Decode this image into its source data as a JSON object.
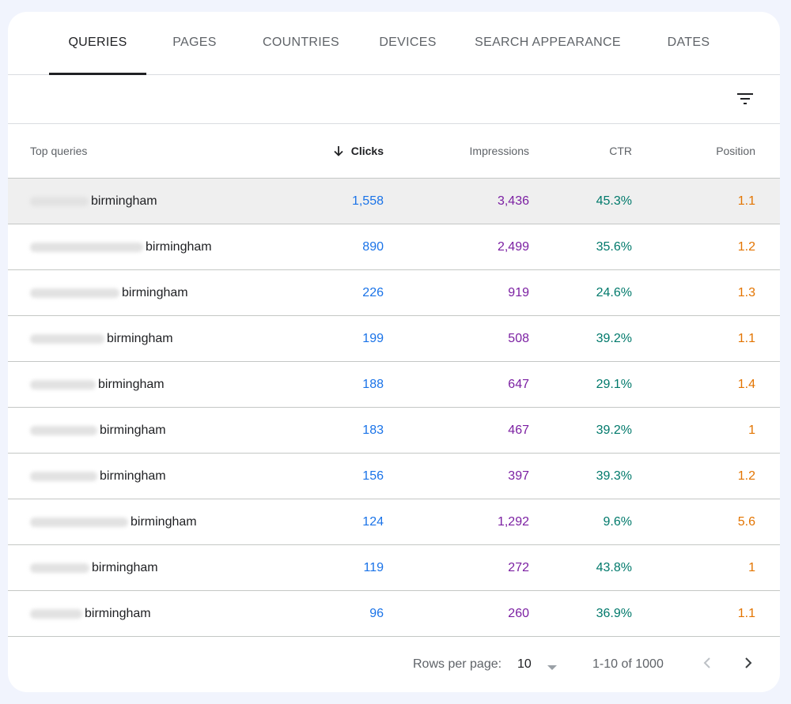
{
  "tabs": [
    {
      "label": "QUERIES",
      "active": true
    },
    {
      "label": "PAGES",
      "active": false
    },
    {
      "label": "COUNTRIES",
      "active": false
    },
    {
      "label": "DEVICES",
      "active": false
    },
    {
      "label": "SEARCH APPEARANCE",
      "active": false
    },
    {
      "label": "DATES",
      "active": false
    }
  ],
  "toolbar": {
    "filter_icon": "filter-icon"
  },
  "table": {
    "headers": {
      "query": "Top queries",
      "clicks": "Clicks",
      "impressions": "Impressions",
      "ctr": "CTR",
      "position": "Position"
    },
    "sort": {
      "column": "clicks",
      "direction": "descending",
      "icon": "arrow-down-icon"
    },
    "rows": [
      {
        "query": "birmingham",
        "clicks": "1,558",
        "impressions": "3,436",
        "ctr": "45.3%",
        "position": "1.1"
      },
      {
        "query": "birmingham",
        "clicks": "890",
        "impressions": "2,499",
        "ctr": "35.6%",
        "position": "1.2"
      },
      {
        "query": "birmingham",
        "clicks": "226",
        "impressions": "919",
        "ctr": "24.6%",
        "position": "1.3"
      },
      {
        "query": "birmingham",
        "clicks": "199",
        "impressions": "508",
        "ctr": "39.2%",
        "position": "1.1"
      },
      {
        "query": "birmingham",
        "clicks": "188",
        "impressions": "647",
        "ctr": "29.1%",
        "position": "1.4"
      },
      {
        "query": "birmingham",
        "clicks": "183",
        "impressions": "467",
        "ctr": "39.2%",
        "position": "1"
      },
      {
        "query": "birmingham",
        "clicks": "156",
        "impressions": "397",
        "ctr": "39.3%",
        "position": "1.2"
      },
      {
        "query": "birmingham",
        "clicks": "124",
        "impressions": "1,292",
        "ctr": "9.6%",
        "position": "5.6"
      },
      {
        "query": "birmingham",
        "clicks": "119",
        "impressions": "272",
        "ctr": "43.8%",
        "position": "1"
      },
      {
        "query": "birmingham",
        "clicks": "96",
        "impressions": "260",
        "ctr": "36.9%",
        "position": "1.1"
      }
    ]
  },
  "footer": {
    "rows_per_page_label": "Rows per page:",
    "rows_per_page_value": "10",
    "range": "1-10 of 1000",
    "prev_icon": "chevron-left-icon",
    "next_icon": "chevron-right-icon"
  },
  "colors": {
    "clicks": "#1a73e8",
    "impressions": "#7b1fa2",
    "ctr": "#00796b",
    "position": "#e37400",
    "background": "#f1f4fd"
  }
}
